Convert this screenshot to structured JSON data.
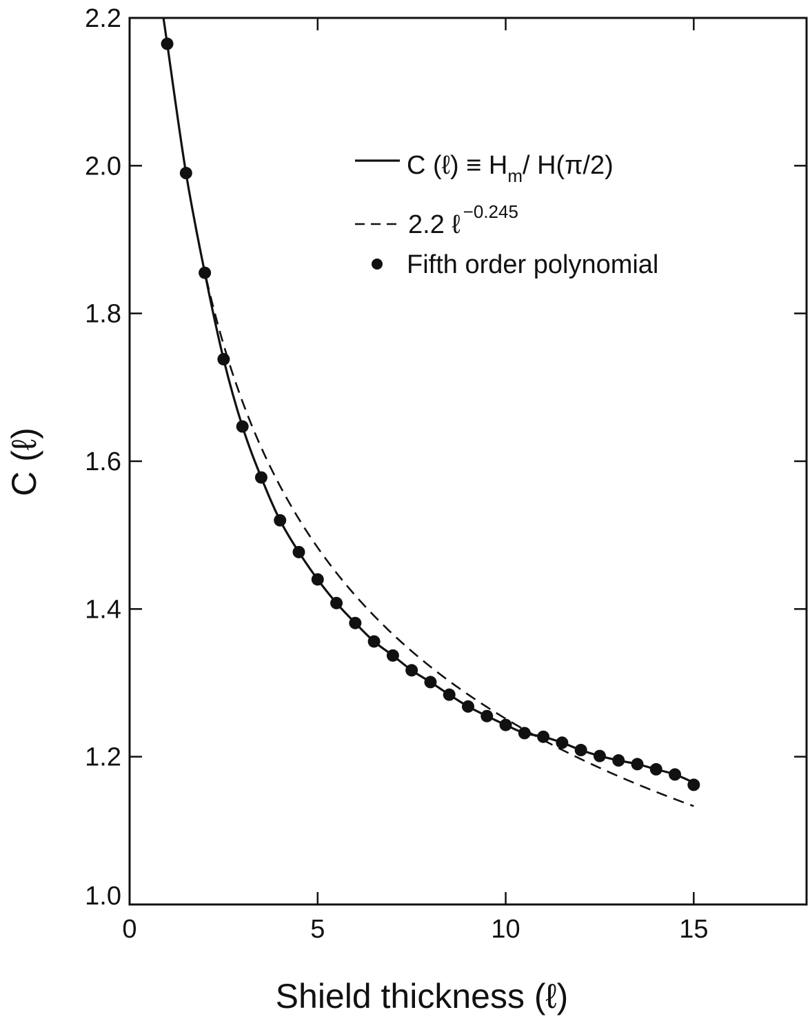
{
  "chart_data": {
    "type": "line",
    "xlabel": "Shield thickness (ℓ)",
    "ylabel": "C (ℓ)",
    "xlim": [
      0,
      18
    ],
    "ylim": [
      1.0,
      2.2
    ],
    "x_ticks": [
      0,
      5,
      10,
      15
    ],
    "y_ticks": [
      1.0,
      1.2,
      1.4,
      1.6,
      1.8,
      2.0,
      2.2
    ],
    "x_tick_labels": [
      "0",
      "5",
      "10",
      "15"
    ],
    "y_tick_labels": [
      "1.0",
      "1.2",
      "1.4",
      "1.6",
      "1.8",
      "2.0",
      "2.2"
    ],
    "grid": false,
    "legend_position": "top-right",
    "series": [
      {
        "name": "C (ℓ) ≡ Hm/ H(π/2)",
        "style": "solid",
        "x": [
          0.9,
          1.0,
          1.5,
          2.0,
          2.5,
          3.0,
          3.5,
          4.0,
          4.5,
          5.0,
          5.5,
          6.0,
          6.5,
          7.0,
          7.5,
          8.0,
          8.5,
          9.0,
          9.5,
          10.0,
          10.5,
          11.0,
          11.5,
          12.0,
          12.5,
          13.0,
          13.5,
          14.0,
          14.5,
          15.0
        ],
        "y": [
          2.2,
          2.165,
          1.99,
          1.855,
          1.738,
          1.647,
          1.578,
          1.52,
          1.477,
          1.44,
          1.408,
          1.381,
          1.356,
          1.337,
          1.317,
          1.301,
          1.284,
          1.268,
          1.255,
          1.243,
          1.232,
          1.227,
          1.219,
          1.209,
          1.201,
          1.195,
          1.19,
          1.183,
          1.176,
          1.165
        ]
      },
      {
        "name": "2.2 ℓ^−0.245",
        "style": "dashed",
        "coefficient": 2.2,
        "exponent": -0.245,
        "x_range": [
          1.75,
          15.0
        ]
      },
      {
        "name": "Fifth order polynomial",
        "style": "markers",
        "x": [
          1.0,
          1.5,
          2.0,
          2.5,
          3.0,
          3.5,
          4.0,
          4.5,
          5.0,
          5.5,
          6.0,
          6.5,
          7.0,
          7.5,
          8.0,
          8.5,
          9.0,
          9.5,
          10.0,
          10.5,
          11.0,
          11.5,
          12.0,
          12.5,
          13.0,
          13.5,
          14.0,
          14.5,
          15.0
        ],
        "y": [
          2.165,
          1.99,
          1.855,
          1.738,
          1.647,
          1.578,
          1.52,
          1.477,
          1.44,
          1.408,
          1.381,
          1.356,
          1.337,
          1.317,
          1.301,
          1.284,
          1.268,
          1.255,
          1.243,
          1.232,
          1.227,
          1.219,
          1.209,
          1.201,
          1.195,
          1.19,
          1.183,
          1.176,
          1.162
        ]
      }
    ],
    "legend": {
      "solid_prefix": "C (ℓ) ≡ H",
      "solid_sub": "m",
      "solid_suffix": "/ H(π/2)",
      "dashed_base": "2.2 ℓ",
      "dashed_exp": "−0.245",
      "markers_label": "Fifth order polynomial"
    }
  }
}
